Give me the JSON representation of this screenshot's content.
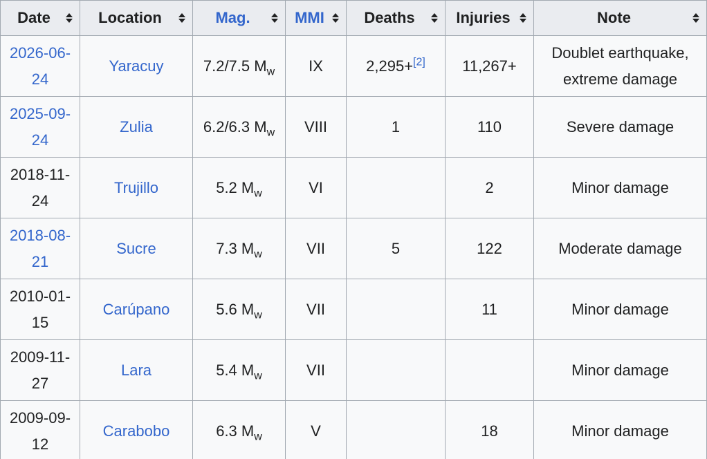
{
  "table": {
    "headers": [
      "Date",
      "Location",
      "Mag.",
      "MMI",
      "Deaths",
      "Injuries",
      "Note"
    ],
    "header_links": [
      false,
      false,
      true,
      true,
      false,
      false,
      false
    ],
    "rows": [
      {
        "date": "2026-06-24",
        "date_link": true,
        "location": "Yaracuy",
        "mag": "7.2/7.5 M",
        "mag_sub": "w",
        "mmi": "IX",
        "deaths": "2,295+",
        "deaths_ref": "[2]",
        "injuries": "11,267+",
        "note": "Doublet earthquake, extreme damage"
      },
      {
        "date": "2025-09-24",
        "date_link": true,
        "location": "Zulia",
        "mag": "6.2/6.3 M",
        "mag_sub": "w",
        "mmi": "VIII",
        "deaths": "1",
        "injuries": "110",
        "note": "Severe damage"
      },
      {
        "date": "2018-11-24",
        "date_link": false,
        "location": "Trujillo",
        "mag": "5.2 M",
        "mag_sub": "w",
        "mmi": "VI",
        "injuries": "2",
        "note": "Minor damage"
      },
      {
        "date": "2018-08-21",
        "date_link": true,
        "location": "Sucre",
        "mag": "7.3 M",
        "mag_sub": "w",
        "mmi": "VII",
        "deaths": "5",
        "injuries": "122",
        "note": "Moderate damage"
      },
      {
        "date": "2010-01-15",
        "date_link": false,
        "location": "Carúpano",
        "mag": "5.6 M",
        "mag_sub": "w",
        "mmi": "VII",
        "injuries": "11",
        "note": "Minor damage"
      },
      {
        "date": "2009-11-27",
        "date_link": false,
        "location": "Lara",
        "mag": "5.4 M",
        "mag_sub": "w",
        "mmi": "VII",
        "note": "Minor damage"
      },
      {
        "date": "2009-09-12",
        "date_link": false,
        "location": "Carabobo",
        "mag": "6.3 M",
        "mag_sub": "w",
        "mmi": "V",
        "injuries": "18",
        "note": "Minor damage"
      }
    ]
  }
}
